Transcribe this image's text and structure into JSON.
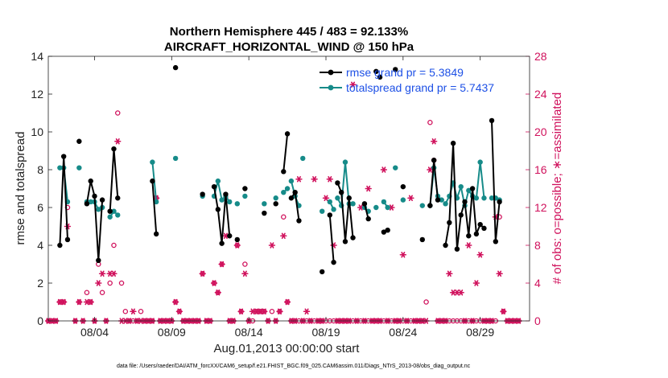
{
  "chart_data": {
    "type": "line",
    "title": "Northern Hemisphere 445 / 483 = 92.133%",
    "subtitle": "AIRCRAFT_HORIZONTAL_WIND @ 150 hPa",
    "xlabel": "Aug.01,2013 00:00:00 start",
    "ylabel_left": "rmse and totalspread",
    "ylabel_right": "# of obs: o=possible; ∗=assimilated",
    "xlim": [
      1,
      32.2
    ],
    "ylim_left": [
      0,
      14
    ],
    "ylim_right": [
      0,
      28
    ],
    "x_ticks": [
      4,
      9,
      14,
      19,
      24,
      29
    ],
    "x_tick_labels": [
      "08/04",
      "08/09",
      "08/14",
      "08/19",
      "08/24",
      "08/29"
    ],
    "y_ticks_left": [
      0,
      2,
      4,
      6,
      8,
      10,
      12,
      14
    ],
    "y_ticks_right": [
      0,
      4,
      8,
      12,
      16,
      20,
      24,
      28
    ],
    "legend": [
      {
        "name": "rmse grand pr = 5.3849",
        "color": "#000000"
      },
      {
        "name": "totalspread grand pr = 5.7437",
        "color": "#168b89"
      }
    ],
    "colors": {
      "rmse": "#000000",
      "spread": "#168b89",
      "obs": "#d0115c",
      "right_axis": "#d0115c"
    },
    "rmse_segments": [
      [
        [
          1.75,
          4.0
        ],
        [
          2.0,
          8.7
        ],
        [
          2.25,
          4.3
        ]
      ],
      [
        [
          3.0,
          9.5
        ]
      ],
      [
        [
          3.5,
          6.2
        ],
        [
          3.75,
          7.4
        ],
        [
          4.0,
          6.6
        ],
        [
          4.25,
          3.2
        ],
        [
          4.5,
          6.4
        ]
      ],
      [
        [
          5.0,
          5.8
        ],
        [
          5.25,
          9.1
        ],
        [
          5.5,
          6.5
        ]
      ],
      [
        [
          7.75,
          7.4
        ],
        [
          8.0,
          4.6
        ]
      ],
      [
        [
          9.25,
          13.4
        ]
      ],
      [
        [
          11.0,
          6.7
        ]
      ],
      [
        [
          11.75,
          7.1
        ],
        [
          12.0,
          5.9
        ],
        [
          12.25,
          4.1
        ],
        [
          12.5,
          6.7
        ],
        [
          12.75,
          4.5
        ]
      ],
      [
        [
          13.25,
          4.3
        ]
      ],
      [
        [
          13.75,
          7.0
        ]
      ],
      [
        [
          15.0,
          5.7
        ]
      ],
      [
        [
          15.75,
          6.2
        ]
      ],
      [
        [
          16.25,
          7.9
        ],
        [
          16.5,
          9.9
        ]
      ],
      [
        [
          16.75,
          6.5
        ],
        [
          17.0,
          6.8
        ],
        [
          17.25,
          5.3
        ]
      ],
      [
        [
          18.75,
          2.6
        ]
      ],
      [
        [
          19.25,
          5.6
        ],
        [
          19.5,
          3.1
        ]
      ],
      [
        [
          19.75,
          7.3
        ],
        [
          20.0,
          6.8
        ],
        [
          20.25,
          4.2
        ],
        [
          20.5,
          6.5
        ],
        [
          20.75,
          4.4
        ]
      ],
      [
        [
          21.5,
          6.2
        ],
        [
          21.75,
          5.4
        ]
      ],
      [
        [
          22.25,
          13.2
        ]
      ],
      [
        [
          22.5,
          12.9
        ]
      ],
      [
        [
          22.75,
          4.7
        ],
        [
          23.0,
          4.8
        ]
      ],
      [
        [
          23.5,
          13.3
        ]
      ],
      [
        [
          24.0,
          7.1
        ]
      ],
      [
        [
          25.25,
          4.3
        ]
      ],
      [
        [
          25.75,
          6.1
        ],
        [
          26.0,
          8.5
        ],
        [
          26.25,
          6.4
        ]
      ],
      [
        [
          26.75,
          4.0
        ],
        [
          27.0,
          5.2
        ],
        [
          27.25,
          9.4
        ],
        [
          27.5,
          3.8
        ],
        [
          27.75,
          5.6
        ],
        [
          28.0,
          6.3
        ],
        [
          28.25,
          4.5
        ],
        [
          28.5,
          7.0
        ],
        [
          28.75,
          4.6
        ],
        [
          29.0,
          5.1
        ],
        [
          29.25,
          4.9
        ]
      ],
      [
        [
          29.75,
          10.6
        ],
        [
          30.0,
          4.2
        ],
        [
          30.25,
          6.3
        ]
      ]
    ],
    "spread_segments": [
      [
        [
          1.75,
          8.1
        ],
        [
          2.0,
          8.1
        ],
        [
          2.25,
          6.3
        ]
      ],
      [
        [
          3.0,
          8.1
        ]
      ],
      [
        [
          3.5,
          6.3
        ],
        [
          3.75,
          6.3
        ],
        [
          4.0,
          6.3
        ],
        [
          4.25,
          5.9
        ],
        [
          4.5,
          6.0
        ]
      ],
      [
        [
          5.0,
          5.5
        ],
        [
          5.25,
          5.8
        ],
        [
          5.5,
          5.6
        ]
      ],
      [
        [
          7.75,
          8.4
        ],
        [
          8.0,
          6.3
        ]
      ],
      [
        [
          9.25,
          8.6
        ]
      ],
      [
        [
          11.0,
          6.6
        ]
      ],
      [
        [
          11.75,
          6.6
        ],
        [
          12.0,
          7.4
        ],
        [
          12.25,
          6.4
        ],
        [
          12.5,
          6.6
        ],
        [
          12.75,
          6.3
        ]
      ],
      [
        [
          13.25,
          6.2
        ]
      ],
      [
        [
          13.75,
          6.6
        ]
      ],
      [
        [
          15.0,
          6.2
        ]
      ],
      [
        [
          15.75,
          6.5
        ]
      ],
      [
        [
          16.25,
          6.8
        ],
        [
          16.5,
          7.0
        ]
      ],
      [
        [
          16.75,
          7.4
        ],
        [
          17.0,
          6.6
        ],
        [
          17.25,
          6.1
        ]
      ],
      [
        [
          17.5,
          8.6
        ]
      ],
      [
        [
          18.75,
          5.8
        ]
      ],
      [
        [
          19.25,
          6.3
        ],
        [
          19.5,
          5.9
        ]
      ],
      [
        [
          19.75,
          6.5
        ],
        [
          20.0,
          6.1
        ],
        [
          20.25,
          8.4
        ],
        [
          20.5,
          6.2
        ],
        [
          20.75,
          6.2
        ]
      ],
      [
        [
          21.5,
          6.0
        ],
        [
          21.75,
          5.8
        ]
      ],
      [
        [
          22.25,
          6.0
        ]
      ],
      [
        [
          22.75,
          6.3
        ],
        [
          23.0,
          6.0
        ]
      ],
      [
        [
          23.5,
          8.1
        ]
      ],
      [
        [
          24.0,
          6.4
        ]
      ],
      [
        [
          25.25,
          6.1
        ]
      ],
      [
        [
          25.75,
          6.1
        ],
        [
          26.0,
          8.1
        ],
        [
          26.25,
          6.6
        ],
        [
          26.5,
          6.4
        ]
      ],
      [
        [
          26.75,
          6.2
        ],
        [
          27.0,
          6.6
        ],
        [
          27.25,
          7.3
        ],
        [
          27.5,
          6.5
        ],
        [
          27.75,
          7.1
        ],
        [
          28.0,
          6.1
        ],
        [
          28.25,
          6.9
        ],
        [
          28.5,
          6.6
        ],
        [
          28.75,
          6.5
        ],
        [
          29.0,
          8.4
        ],
        [
          29.25,
          6.5
        ]
      ],
      [
        [
          29.75,
          6.5
        ],
        [
          30.0,
          6.5
        ],
        [
          30.25,
          6.4
        ]
      ]
    ],
    "obs_possible": [
      [
        1.0,
        0
      ],
      [
        1.25,
        0
      ],
      [
        1.5,
        0
      ],
      [
        1.75,
        2
      ],
      [
        2.0,
        2
      ],
      [
        2.25,
        12
      ],
      [
        2.75,
        0
      ],
      [
        3.0,
        2
      ],
      [
        3.25,
        0
      ],
      [
        3.5,
        3
      ],
      [
        3.75,
        2
      ],
      [
        4.0,
        0
      ],
      [
        4.25,
        6
      ],
      [
        4.5,
        3
      ],
      [
        4.75,
        0
      ],
      [
        5.0,
        4
      ],
      [
        5.25,
        8
      ],
      [
        5.5,
        22
      ],
      [
        5.75,
        4
      ],
      [
        6.0,
        1
      ],
      [
        6.25,
        0
      ],
      [
        6.5,
        0
      ],
      [
        6.75,
        0
      ],
      [
        7.0,
        1
      ],
      [
        7.25,
        0
      ],
      [
        7.5,
        0
      ],
      [
        7.75,
        0
      ],
      [
        8.0,
        13
      ],
      [
        8.25,
        0
      ],
      [
        8.5,
        0
      ],
      [
        8.75,
        0
      ],
      [
        9.0,
        0
      ],
      [
        9.25,
        2
      ],
      [
        9.5,
        1
      ],
      [
        9.75,
        0
      ],
      [
        10.0,
        0
      ],
      [
        10.25,
        0
      ],
      [
        10.5,
        0
      ],
      [
        10.75,
        0
      ],
      [
        11.0,
        5
      ],
      [
        11.25,
        0
      ],
      [
        11.5,
        0
      ],
      [
        11.75,
        4
      ],
      [
        12.0,
        3
      ],
      [
        12.25,
        6
      ],
      [
        12.5,
        13
      ],
      [
        12.75,
        0
      ],
      [
        13.0,
        0
      ],
      [
        13.25,
        8
      ],
      [
        13.5,
        1
      ],
      [
        13.75,
        6
      ],
      [
        14.0,
        0
      ],
      [
        14.25,
        0
      ],
      [
        14.5,
        1
      ],
      [
        14.75,
        1
      ],
      [
        15.0,
        1
      ],
      [
        15.25,
        0
      ],
      [
        15.5,
        1
      ],
      [
        15.75,
        0
      ],
      [
        16.0,
        1
      ],
      [
        16.25,
        11
      ],
      [
        16.5,
        2
      ],
      [
        16.75,
        0
      ],
      [
        17.0,
        0
      ],
      [
        17.25,
        0
      ],
      [
        17.5,
        0
      ],
      [
        17.75,
        0
      ],
      [
        18.0,
        0
      ],
      [
        18.25,
        0
      ],
      [
        18.5,
        0
      ],
      [
        18.75,
        0
      ],
      [
        19.0,
        0
      ],
      [
        19.25,
        0
      ],
      [
        19.5,
        0
      ],
      [
        19.75,
        0
      ],
      [
        20.0,
        0
      ],
      [
        20.25,
        0
      ],
      [
        20.5,
        0
      ],
      [
        20.75,
        0
      ],
      [
        21.0,
        0
      ],
      [
        21.25,
        0
      ],
      [
        21.5,
        0
      ],
      [
        21.75,
        0
      ],
      [
        22.0,
        0
      ],
      [
        22.25,
        0
      ],
      [
        22.5,
        0
      ],
      [
        22.75,
        0
      ],
      [
        23.0,
        0
      ],
      [
        23.25,
        0
      ],
      [
        23.5,
        0
      ],
      [
        23.75,
        0
      ],
      [
        24.0,
        0
      ],
      [
        24.25,
        0
      ],
      [
        24.5,
        0
      ],
      [
        24.75,
        0
      ],
      [
        25.0,
        0
      ],
      [
        25.25,
        0
      ],
      [
        25.5,
        2
      ],
      [
        25.75,
        21
      ],
      [
        26.0,
        17
      ],
      [
        26.25,
        0
      ],
      [
        26.5,
        0
      ],
      [
        26.75,
        0
      ],
      [
        27.0,
        0
      ],
      [
        27.25,
        0
      ],
      [
        27.5,
        0
      ],
      [
        27.75,
        0
      ],
      [
        28.0,
        0
      ],
      [
        28.25,
        0
      ],
      [
        28.5,
        0
      ],
      [
        28.75,
        0
      ],
      [
        29.0,
        0
      ],
      [
        29.25,
        0
      ],
      [
        29.5,
        0
      ],
      [
        29.75,
        0
      ],
      [
        30.0,
        0
      ],
      [
        30.25,
        11
      ],
      [
        30.5,
        1
      ],
      [
        30.75,
        0
      ],
      [
        31.0,
        0
      ],
      [
        31.25,
        0
      ],
      [
        31.5,
        0
      ]
    ],
    "obs_assimilated": [
      [
        1.0,
        0
      ],
      [
        1.25,
        0
      ],
      [
        1.5,
        0
      ],
      [
        1.75,
        2
      ],
      [
        2.0,
        2
      ],
      [
        2.25,
        10
      ],
      [
        2.75,
        0
      ],
      [
        3.0,
        2
      ],
      [
        3.25,
        0
      ],
      [
        3.5,
        2
      ],
      [
        3.75,
        2
      ],
      [
        4.0,
        0
      ],
      [
        4.25,
        4
      ],
      [
        4.5,
        5
      ],
      [
        4.75,
        0
      ],
      [
        5.0,
        5
      ],
      [
        5.25,
        5
      ],
      [
        5.5,
        19
      ],
      [
        5.75,
        0
      ],
      [
        6.0,
        0
      ],
      [
        6.25,
        0
      ],
      [
        6.5,
        1
      ],
      [
        6.75,
        0
      ],
      [
        7.0,
        0
      ],
      [
        7.25,
        0
      ],
      [
        7.5,
        0
      ],
      [
        7.75,
        0
      ],
      [
        8.0,
        13
      ],
      [
        8.25,
        0
      ],
      [
        8.5,
        0
      ],
      [
        8.75,
        0
      ],
      [
        9.0,
        0
      ],
      [
        9.25,
        2
      ],
      [
        9.5,
        1
      ],
      [
        9.75,
        0
      ],
      [
        10.0,
        0
      ],
      [
        10.25,
        0
      ],
      [
        10.5,
        0
      ],
      [
        10.75,
        0
      ],
      [
        11.0,
        5
      ],
      [
        11.25,
        0
      ],
      [
        11.5,
        0
      ],
      [
        11.75,
        4
      ],
      [
        12.0,
        3
      ],
      [
        12.25,
        6
      ],
      [
        12.5,
        9
      ],
      [
        12.75,
        0
      ],
      [
        13.0,
        0
      ],
      [
        13.25,
        8
      ],
      [
        13.5,
        1
      ],
      [
        13.75,
        5
      ],
      [
        14.0,
        0
      ],
      [
        14.25,
        1
      ],
      [
        14.5,
        1
      ],
      [
        14.75,
        1
      ],
      [
        15.0,
        1
      ],
      [
        15.25,
        0
      ],
      [
        15.5,
        8
      ],
      [
        15.75,
        0
      ],
      [
        16.0,
        1
      ],
      [
        16.25,
        9
      ],
      [
        16.5,
        2
      ],
      [
        16.75,
        0
      ],
      [
        17.0,
        0
      ],
      [
        17.25,
        15
      ],
      [
        17.5,
        0
      ],
      [
        17.75,
        1
      ],
      [
        18.0,
        0
      ],
      [
        18.25,
        15
      ],
      [
        18.5,
        0
      ],
      [
        18.75,
        0
      ],
      [
        19.0,
        13
      ],
      [
        19.25,
        15
      ],
      [
        19.5,
        8
      ],
      [
        19.75,
        0
      ],
      [
        20.0,
        0
      ],
      [
        20.25,
        0
      ],
      [
        20.5,
        0
      ],
      [
        20.75,
        25
      ],
      [
        21.0,
        0
      ],
      [
        21.25,
        12
      ],
      [
        21.5,
        0
      ],
      [
        21.75,
        14
      ],
      [
        22.0,
        0
      ],
      [
        22.25,
        0
      ],
      [
        22.5,
        0
      ],
      [
        22.75,
        16
      ],
      [
        23.0,
        0
      ],
      [
        23.25,
        12
      ],
      [
        23.5,
        0
      ],
      [
        23.75,
        0
      ],
      [
        24.0,
        7
      ],
      [
        24.25,
        0
      ],
      [
        24.5,
        13
      ],
      [
        24.75,
        0
      ],
      [
        25.0,
        0
      ],
      [
        25.25,
        0
      ],
      [
        25.5,
        0
      ],
      [
        25.75,
        16
      ],
      [
        26.0,
        19
      ],
      [
        26.25,
        0
      ],
      [
        26.5,
        0
      ],
      [
        26.75,
        0
      ],
      [
        27.0,
        5
      ],
      [
        27.25,
        3
      ],
      [
        27.5,
        3
      ],
      [
        27.75,
        3
      ],
      [
        28.0,
        0
      ],
      [
        28.25,
        8
      ],
      [
        28.5,
        0
      ],
      [
        28.75,
        4
      ],
      [
        29.0,
        7
      ],
      [
        29.25,
        0
      ],
      [
        29.5,
        0
      ],
      [
        29.75,
        0
      ],
      [
        30.0,
        11
      ],
      [
        30.25,
        5
      ],
      [
        30.5,
        1
      ],
      [
        30.75,
        0
      ],
      [
        31.0,
        0
      ],
      [
        31.25,
        0
      ],
      [
        31.5,
        0
      ]
    ]
  },
  "footnote": "data file: /Users/raeder/DAI/ATM_forcXX/CAM6_setup/f.e21.FHIST_BGC.f09_025.CAM6assim.011/Diags_NTrS_2013-08/obs_diag_output.nc"
}
